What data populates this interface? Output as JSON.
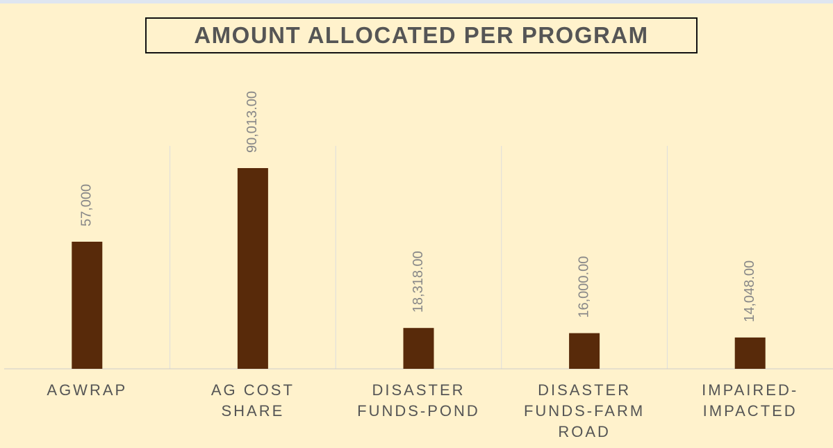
{
  "chart_data": {
    "type": "bar",
    "title": "AMOUNT ALLOCATED PER PROGRAM",
    "categories": [
      "AGWRAP",
      "AG COST SHARE",
      "DISASTER FUNDS-POND",
      "DISASTER FUNDS-FARM ROAD",
      "IMPAIRED-IMPACTED"
    ],
    "values": [
      57000,
      90013,
      18318,
      16000,
      14048
    ],
    "value_labels": [
      "57,000",
      "90,013.00",
      "18,318.00",
      "16,000.00",
      "14,048.00"
    ],
    "color": "#582a0a"
  }
}
